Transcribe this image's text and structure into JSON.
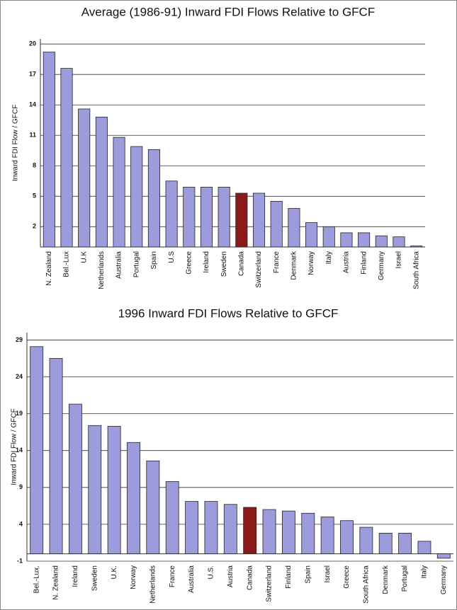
{
  "chart_data": [
    {
      "type": "bar",
      "title": "Average (1986-91) Inward FDI Flows Relative to GFCF",
      "y_label": "Inward FDI Flow / GFCF",
      "categories": [
        "N. Zealand",
        "Bel.-Lux",
        "U.K",
        "Netherlands",
        "Australia",
        "Portugal",
        "Spain",
        "U.S",
        "Greece",
        "Ireland",
        "Sweden",
        "Canada",
        "Switzerland",
        "France",
        "Denmark",
        "Norway",
        "Italy",
        "Austria",
        "Finland",
        "Germany",
        "Israel",
        "South Africa"
      ],
      "values": [
        19.2,
        17.6,
        13.6,
        12.8,
        10.8,
        9.9,
        9.6,
        6.5,
        5.9,
        5.9,
        5.9,
        5.3,
        5.3,
        4.5,
        3.8,
        2.4,
        2.0,
        1.4,
        1.4,
        1.1,
        1.0,
        0.1
      ],
      "colors": [
        "#9c9cdc",
        "#9c9cdc",
        "#9c9cdc",
        "#9c9cdc",
        "#9c9cdc",
        "#9c9cdc",
        "#9c9cdc",
        "#9c9cdc",
        "#9c9cdc",
        "#9c9cdc",
        "#9c9cdc",
        "#8b1a1a",
        "#9c9cdc",
        "#9c9cdc",
        "#9c9cdc",
        "#9c9cdc",
        "#9c9cdc",
        "#9c9cdc",
        "#9c9cdc",
        "#9c9cdc",
        "#9c9cdc",
        "#9c9cdc"
      ],
      "ylim": [
        0,
        20.5
      ],
      "yticks": [
        2,
        5,
        8,
        11,
        14,
        17,
        20
      ],
      "grid": true
    },
    {
      "type": "bar",
      "title": "1996 Inward FDI Flows Relative to GFCF",
      "y_label": "Inward FDI Flow / GFCF",
      "categories": [
        "Bel.-Lux.",
        "N. Zealand",
        "Ireland",
        "Sweden",
        "U.K.",
        "Norway",
        "Netherlands",
        "France",
        "Australia",
        "U.S.",
        "Austria",
        "Canada",
        "Switzerland",
        "Finland",
        "Spain",
        "Israel",
        "Greece",
        "South Africa",
        "Denmark",
        "Portugal",
        "Italy",
        "Germany"
      ],
      "values": [
        28.1,
        26.5,
        20.3,
        17.4,
        17.3,
        15.1,
        12.6,
        9.8,
        7.1,
        7.1,
        6.7,
        6.3,
        6.0,
        5.8,
        5.5,
        5.0,
        4.5,
        3.6,
        2.8,
        2.8,
        1.7,
        -0.6
      ],
      "colors": [
        "#9c9cdc",
        "#9c9cdc",
        "#9c9cdc",
        "#9c9cdc",
        "#9c9cdc",
        "#9c9cdc",
        "#9c9cdc",
        "#9c9cdc",
        "#9c9cdc",
        "#9c9cdc",
        "#9c9cdc",
        "#8b1a1a",
        "#9c9cdc",
        "#9c9cdc",
        "#9c9cdc",
        "#9c9cdc",
        "#9c9cdc",
        "#9c9cdc",
        "#9c9cdc",
        "#9c9cdc",
        "#9c9cdc",
        "#9c9cdc"
      ],
      "ylim": [
        -1,
        30
      ],
      "yticks": [
        -1,
        4,
        9,
        14,
        19,
        24,
        29
      ],
      "grid": true
    }
  ]
}
